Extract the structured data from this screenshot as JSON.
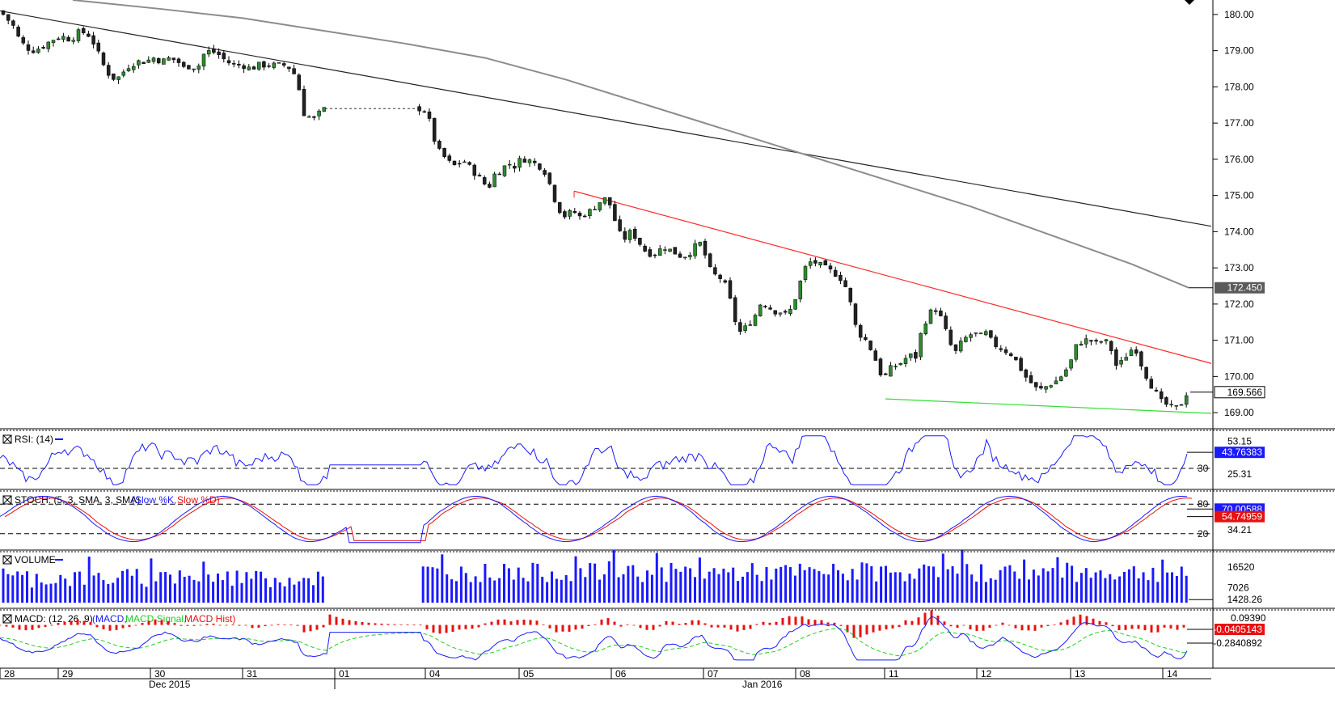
{
  "chart_data": [
    {
      "type": "candlestick",
      "pane": "price",
      "ylim": [
        168.6,
        180.4
      ],
      "y_ticks": [
        "180.00",
        "179.00",
        "178.00",
        "177.00",
        "176.00",
        "175.00",
        "174.00",
        "173.00",
        "172.00",
        "171.00",
        "170.00",
        "169.00"
      ],
      "tick_values": [
        180,
        179,
        178,
        177,
        176,
        175,
        174,
        173,
        172,
        171,
        170,
        169
      ],
      "last_price": "169.566",
      "last_price_value": 169.566,
      "ma_last": "172.450",
      "ma_last_value": 172.45,
      "x_day_labels": [
        "28",
        "29",
        "30",
        "31",
        "01",
        "04",
        "05",
        "06",
        "07",
        "08",
        "11",
        "12",
        "13",
        "14"
      ],
      "x_month_labels": [
        "Dec 2015",
        "Jan 2016"
      ],
      "colors": {
        "up": "#2e8b2e",
        "down": "#222222",
        "ma": "#8c8c8c",
        "trend_long": "#222222",
        "resistance": "#ff2a2a",
        "support": "#33dd33",
        "axis_tag": "#5a5a5a"
      },
      "close_path": [
        [
          0,
          180.1
        ],
        [
          8,
          179.9
        ],
        [
          16,
          179.7
        ],
        [
          24,
          179.3
        ],
        [
          32,
          179.1
        ],
        [
          40,
          179.0
        ],
        [
          52,
          179.1
        ],
        [
          64,
          179.3
        ],
        [
          76,
          179.4
        ],
        [
          88,
          179.3
        ],
        [
          96,
          179.5
        ],
        [
          104,
          179.5
        ],
        [
          112,
          179.4
        ],
        [
          120,
          179.0
        ],
        [
          128,
          178.6
        ],
        [
          136,
          178.3
        ],
        [
          144,
          178.2
        ],
        [
          152,
          178.4
        ],
        [
          160,
          178.6
        ],
        [
          170,
          178.7
        ],
        [
          180,
          178.7
        ],
        [
          190,
          178.8
        ],
        [
          200,
          178.7
        ],
        [
          210,
          178.8
        ],
        [
          220,
          178.7
        ],
        [
          228,
          178.5
        ],
        [
          236,
          178.6
        ],
        [
          244,
          178.5
        ],
        [
          252,
          178.9
        ],
        [
          260,
          179.0
        ],
        [
          270,
          178.9
        ],
        [
          280,
          178.7
        ],
        [
          290,
          178.6
        ],
        [
          300,
          178.6
        ],
        [
          310,
          178.5
        ],
        [
          320,
          178.6
        ],
        [
          332,
          178.6
        ],
        [
          342,
          178.6
        ],
        [
          352,
          178.6
        ],
        [
          360,
          178.5
        ],
        [
          368,
          178.2
        ],
        [
          374,
          177.3
        ],
        [
          380,
          177.2
        ],
        [
          388,
          177.1
        ],
        [
          396,
          177.3
        ],
        [
          402,
          177.4
        ],
        [
          520,
          177.4
        ],
        [
          528,
          177.3
        ],
        [
          534,
          176.8
        ],
        [
          540,
          176.3
        ],
        [
          548,
          176.1
        ],
        [
          556,
          175.9
        ],
        [
          564,
          175.8
        ],
        [
          572,
          176.0
        ],
        [
          580,
          175.8
        ],
        [
          588,
          175.6
        ],
        [
          596,
          175.4
        ],
        [
          604,
          175.2
        ],
        [
          612,
          175.6
        ],
        [
          620,
          175.7
        ],
        [
          628,
          175.9
        ],
        [
          636,
          175.8
        ],
        [
          644,
          176.0
        ],
        [
          652,
          176.0
        ],
        [
          660,
          175.9
        ],
        [
          668,
          175.8
        ],
        [
          676,
          175.6
        ],
        [
          684,
          175.0
        ],
        [
          692,
          174.6
        ],
        [
          700,
          174.4
        ],
        [
          708,
          174.6
        ],
        [
          716,
          174.4
        ],
        [
          724,
          174.5
        ],
        [
          732,
          174.6
        ],
        [
          740,
          174.8
        ],
        [
          748,
          174.9
        ],
        [
          756,
          174.7
        ],
        [
          764,
          174.0
        ],
        [
          772,
          173.8
        ],
        [
          780,
          174.0
        ],
        [
          788,
          173.8
        ],
        [
          796,
          173.5
        ],
        [
          804,
          173.4
        ],
        [
          812,
          173.4
        ],
        [
          820,
          173.6
        ],
        [
          828,
          173.5
        ],
        [
          836,
          173.4
        ],
        [
          844,
          173.3
        ],
        [
          852,
          173.4
        ],
        [
          860,
          173.6
        ],
        [
          868,
          173.7
        ],
        [
          876,
          173.0
        ],
        [
          884,
          172.8
        ],
        [
          892,
          172.7
        ],
        [
          900,
          172.4
        ],
        [
          908,
          171.6
        ],
        [
          916,
          171.2
        ],
        [
          924,
          171.4
        ],
        [
          932,
          171.6
        ],
        [
          940,
          172.0
        ],
        [
          948,
          172.0
        ],
        [
          956,
          171.8
        ],
        [
          964,
          171.8
        ],
        [
          972,
          171.7
        ],
        [
          980,
          171.9
        ],
        [
          988,
          172.5
        ],
        [
          996,
          173.0
        ],
        [
          1004,
          173.2
        ],
        [
          1012,
          173.1
        ],
        [
          1020,
          173.0
        ],
        [
          1028,
          172.9
        ],
        [
          1036,
          172.8
        ],
        [
          1044,
          172.6
        ],
        [
          1052,
          172.0
        ],
        [
          1060,
          171.2
        ],
        [
          1068,
          171.1
        ],
        [
          1076,
          170.8
        ],
        [
          1084,
          170.4
        ],
        [
          1092,
          169.9
        ],
        [
          1100,
          170.2
        ],
        [
          1108,
          170.3
        ],
        [
          1116,
          170.4
        ],
        [
          1124,
          170.6
        ],
        [
          1132,
          170.5
        ],
        [
          1140,
          171.3
        ],
        [
          1148,
          171.7
        ],
        [
          1156,
          171.9
        ],
        [
          1164,
          171.6
        ],
        [
          1172,
          171.1
        ],
        [
          1180,
          170.6
        ],
        [
          1188,
          170.9
        ],
        [
          1196,
          171.1
        ],
        [
          1204,
          171.2
        ],
        [
          1212,
          171.1
        ],
        [
          1220,
          171.2
        ],
        [
          1228,
          170.9
        ],
        [
          1236,
          170.8
        ],
        [
          1244,
          170.7
        ],
        [
          1252,
          170.6
        ],
        [
          1260,
          170.3
        ],
        [
          1268,
          170.0
        ],
        [
          1276,
          169.8
        ],
        [
          1284,
          169.6
        ],
        [
          1292,
          169.7
        ],
        [
          1300,
          169.8
        ],
        [
          1308,
          169.9
        ],
        [
          1316,
          170.1
        ],
        [
          1324,
          170.4
        ],
        [
          1332,
          170.9
        ],
        [
          1340,
          171.0
        ],
        [
          1348,
          171.0
        ],
        [
          1356,
          170.9
        ],
        [
          1364,
          171.0
        ],
        [
          1372,
          170.9
        ],
        [
          1380,
          170.3
        ],
        [
          1388,
          170.4
        ],
        [
          1396,
          170.7
        ],
        [
          1404,
          170.8
        ],
        [
          1412,
          170.3
        ],
        [
          1420,
          169.9
        ],
        [
          1428,
          169.6
        ],
        [
          1436,
          169.3
        ],
        [
          1444,
          169.2
        ],
        [
          1452,
          169.1
        ],
        [
          1460,
          169.2
        ],
        [
          1468,
          169.566
        ]
      ],
      "ma_path": [
        [
          90,
          180.4
        ],
        [
          200,
          180.15
        ],
        [
          300,
          179.9
        ],
        [
          400,
          179.55
        ],
        [
          500,
          179.2
        ],
        [
          600,
          178.8
        ],
        [
          700,
          178.2
        ],
        [
          800,
          177.5
        ],
        [
          900,
          176.8
        ],
        [
          1000,
          176.1
        ],
        [
          1100,
          175.4
        ],
        [
          1200,
          174.7
        ],
        [
          1300,
          173.9
        ],
        [
          1400,
          173.1
        ],
        [
          1470,
          172.45
        ]
      ],
      "trend_long": [
        [
          0,
          180.1
        ],
        [
          1498,
          174.15
        ]
      ],
      "resistance": [
        [
          710,
          175.12
        ],
        [
          1498,
          170.36
        ]
      ],
      "support": [
        [
          1095,
          169.38
        ],
        [
          1498,
          168.98
        ]
      ]
    },
    {
      "type": "line",
      "pane": "RSI",
      "title": "RSI: (14)",
      "ylim": [
        12,
        64
      ],
      "right_labels": [
        "53.15",
        "25.31"
      ],
      "right_values": [
        53.15,
        25.31
      ],
      "level_labels": [
        "30"
      ],
      "level_values": [
        30
      ],
      "current": "43.76383",
      "current_value": 43.76383,
      "color": "#1a1aff"
    },
    {
      "type": "line",
      "pane": "STOCH",
      "title": "STOCH: (5, 3, SMA, 3, SMA)",
      "legend": [
        "Slow %K",
        "Slow %D"
      ],
      "ylim": [
        0,
        100
      ],
      "level_labels": [
        "80",
        "20"
      ],
      "level_values": [
        80,
        20
      ],
      "right_labels": [
        "34.21"
      ],
      "right_values": [
        34.21
      ],
      "current_k": "70.00588",
      "current_k_value": 70.00588,
      "current_d": "54.74959",
      "current_d_value": 54.74959,
      "colors": {
        "k": "#1a1aff",
        "d": "#e81010"
      }
    },
    {
      "type": "bar",
      "pane": "VOLUME",
      "title": "VOLUME",
      "ylim": [
        0,
        24000
      ],
      "right_labels": [
        "16520",
        "7026"
      ],
      "right_values": [
        16520,
        7026
      ],
      "current": "1428.26",
      "current_value": 1428.26,
      "color": "#1a1aff"
    },
    {
      "type": "line",
      "pane": "MACD",
      "title": "MACD: (12, 26, 9)",
      "legend": [
        "MACD",
        "MACD Signal",
        "MACD Hist"
      ],
      "right_labels": [
        "0.09390"
      ],
      "ylim": [
        -1.0,
        0.4
      ],
      "current_macd": "-0.2840892",
      "current_macd_value": -0.2840892,
      "current_hist": "-0.0405143",
      "current_hist_value": -0.0405143,
      "colors": {
        "macd": "#1a1aff",
        "signal": "#22cc22",
        "hist": "#e81010"
      }
    }
  ]
}
